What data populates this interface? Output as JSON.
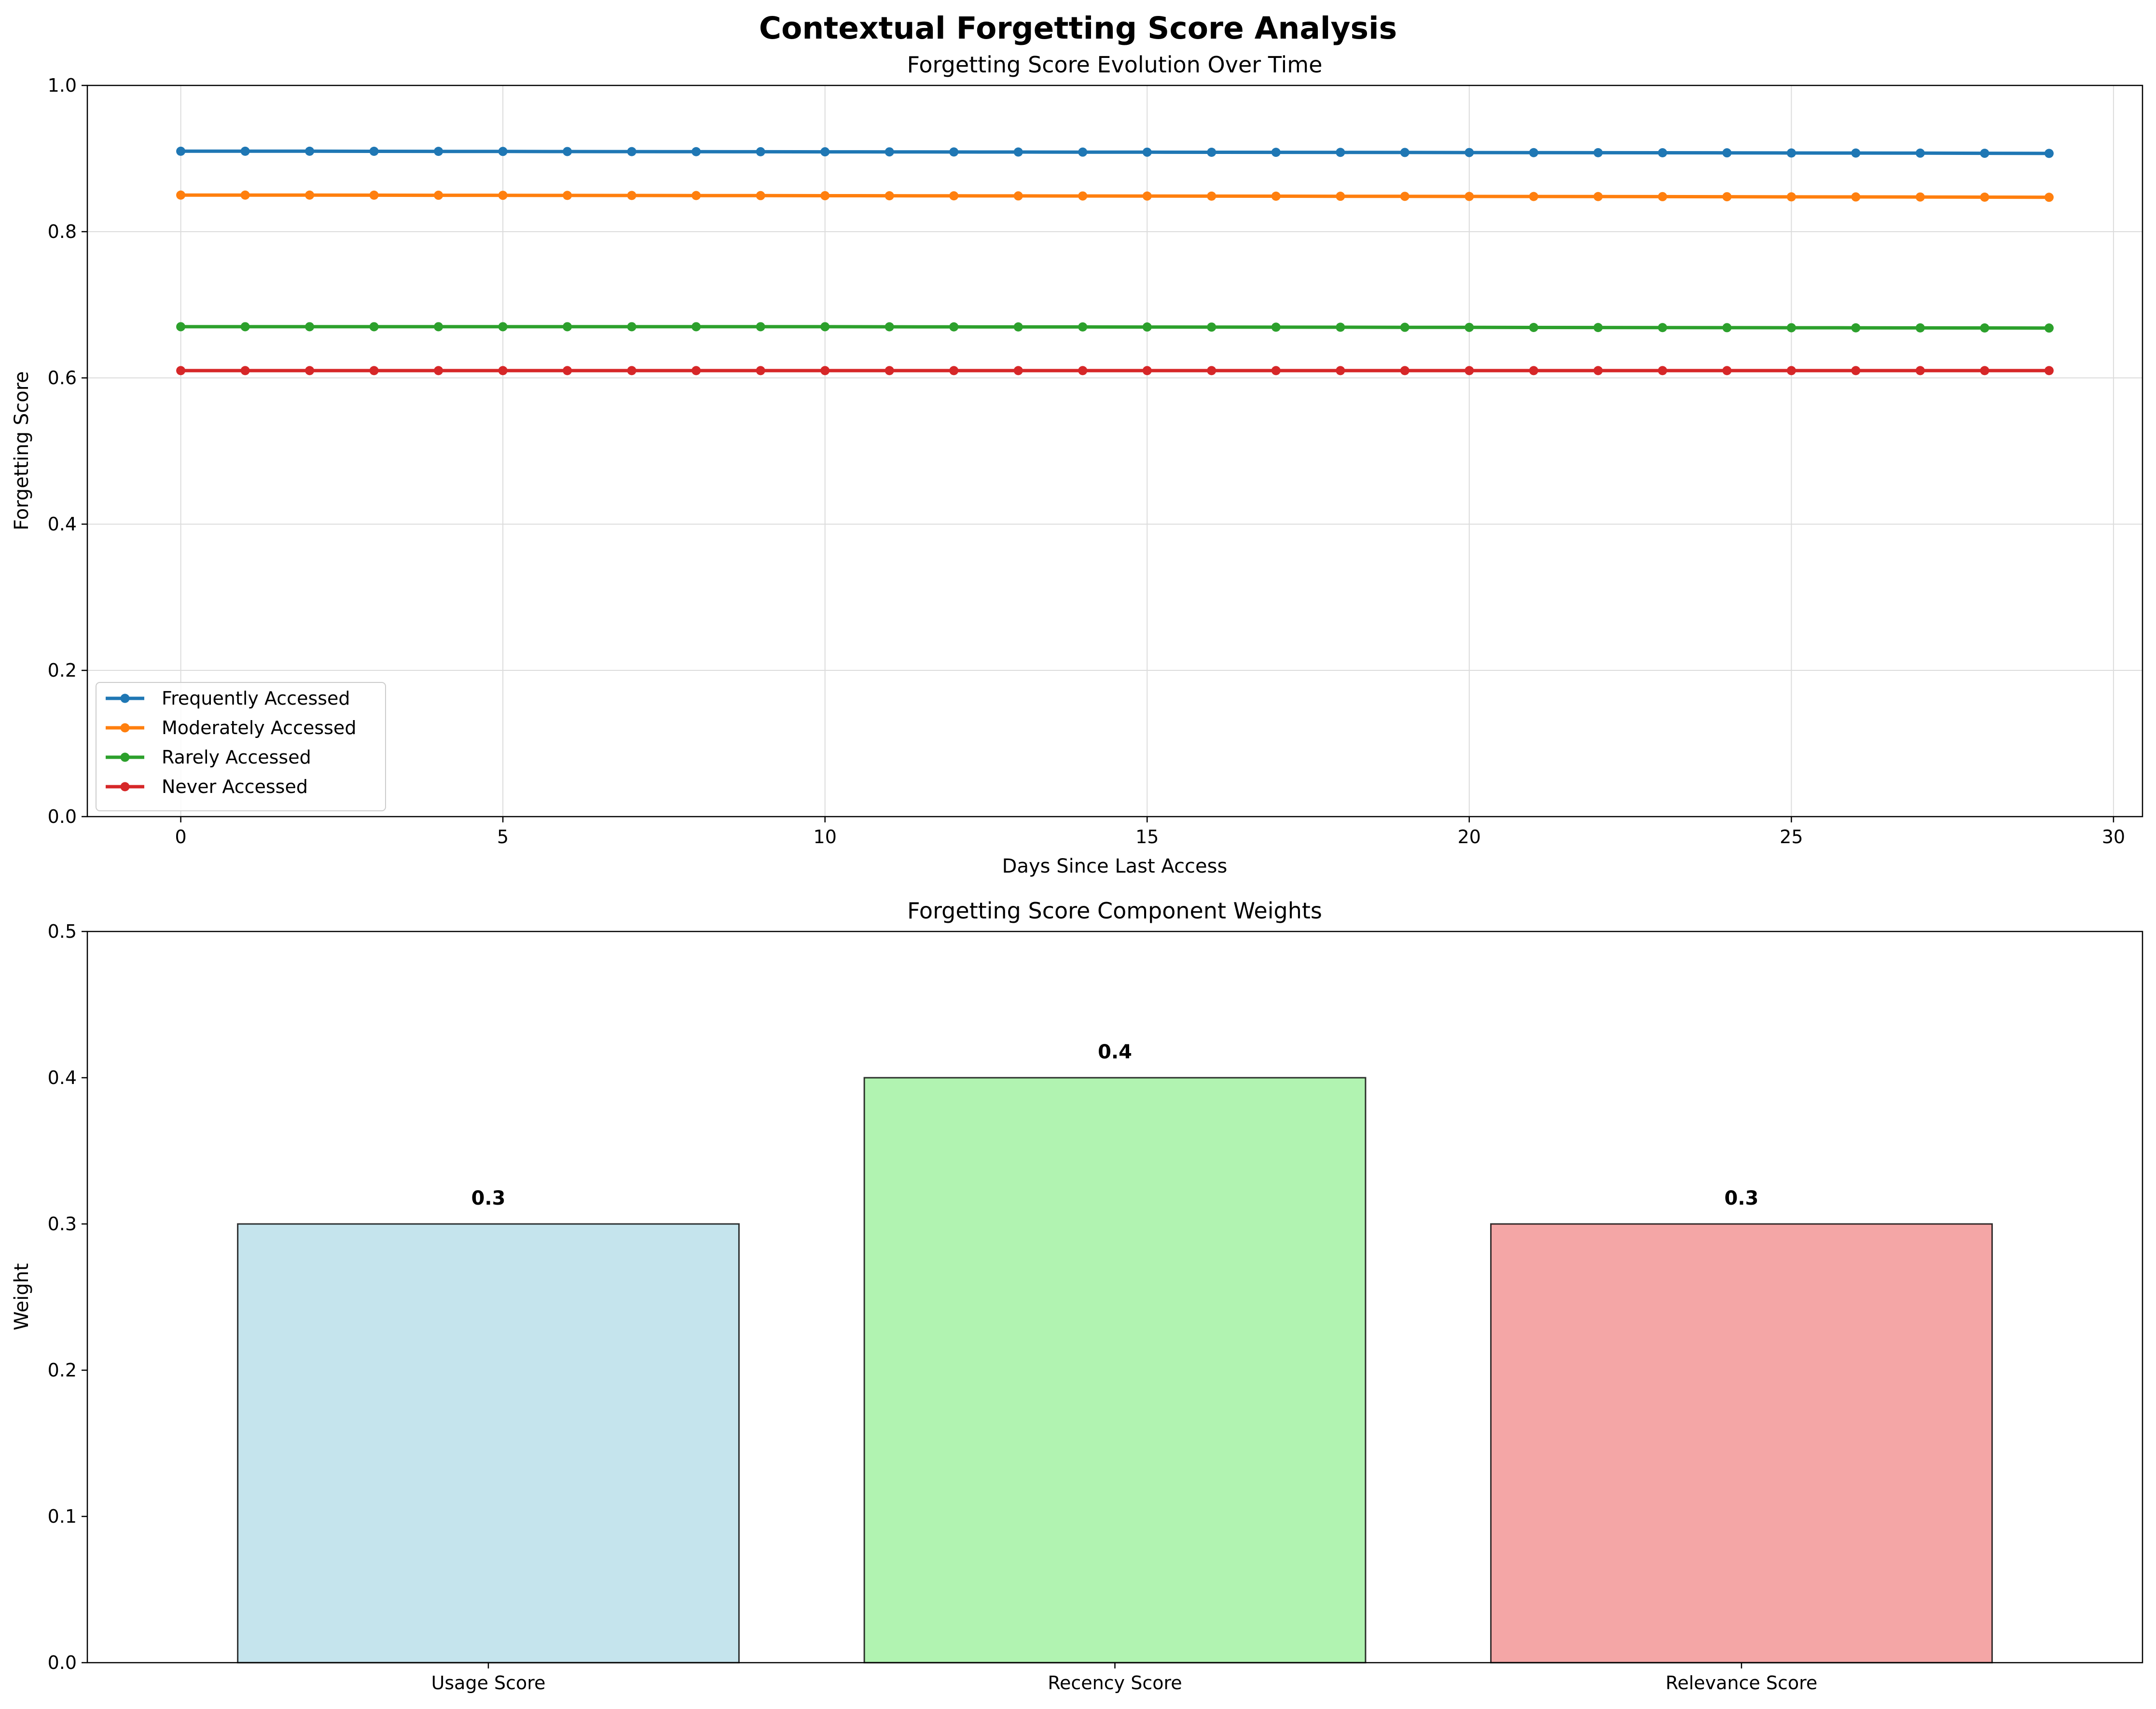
{
  "figure": {
    "title": "Contextual Forgetting Score Analysis"
  },
  "chart_data": [
    {
      "type": "line",
      "title": "Forgetting Score Evolution Over Time",
      "xlabel": "Days Since Last Access",
      "ylabel": "Forgetting Score",
      "xlim": [
        -1.45,
        30.45
      ],
      "ylim": [
        0,
        1.0
      ],
      "xticks": [
        0,
        5,
        10,
        15,
        20,
        25,
        30
      ],
      "yticks": [
        0.0,
        0.2,
        0.4,
        0.6,
        0.8,
        1.0
      ],
      "grid": true,
      "legend_position": "lower-left",
      "x": [
        0,
        1,
        2,
        3,
        4,
        5,
        6,
        7,
        8,
        9,
        10,
        11,
        12,
        13,
        14,
        15,
        16,
        17,
        18,
        19,
        20,
        21,
        22,
        23,
        24,
        25,
        26,
        27,
        28,
        29
      ],
      "series": [
        {
          "name": "Frequently Accessed",
          "color": "#1f77b4",
          "values": [
            0.91,
            0.91,
            0.91,
            0.9099,
            0.9098,
            0.9097,
            0.9096,
            0.9095,
            0.9094,
            0.9093,
            0.9092,
            0.9091,
            0.909,
            0.9089,
            0.9088,
            0.9087,
            0.9086,
            0.9085,
            0.9084,
            0.9083,
            0.9082,
            0.9081,
            0.908,
            0.9079,
            0.9078,
            0.9076,
            0.9075,
            0.9074,
            0.9072,
            0.907
          ]
        },
        {
          "name": "Moderately Accessed",
          "color": "#ff7f0e",
          "values": [
            0.85,
            0.85,
            0.85,
            0.8499,
            0.8498,
            0.8497,
            0.8496,
            0.8495,
            0.8494,
            0.8493,
            0.8492,
            0.8491,
            0.849,
            0.8489,
            0.8488,
            0.8487,
            0.8486,
            0.8485,
            0.8484,
            0.8483,
            0.8482,
            0.8481,
            0.848,
            0.8479,
            0.8478,
            0.8476,
            0.8475,
            0.8474,
            0.8472,
            0.847
          ]
        },
        {
          "name": "Rarely Accessed",
          "color": "#2ca02c",
          "values": [
            0.67,
            0.67,
            0.67,
            0.67,
            0.67,
            0.67,
            0.67,
            0.67,
            0.67,
            0.67,
            0.67,
            0.6699,
            0.6698,
            0.6697,
            0.6697,
            0.6696,
            0.6695,
            0.6694,
            0.6693,
            0.6692,
            0.6691,
            0.669,
            0.6689,
            0.6688,
            0.6687,
            0.6686,
            0.6685,
            0.6684,
            0.6683,
            0.6682
          ]
        },
        {
          "name": "Never Accessed",
          "color": "#d62728",
          "values": [
            0.61,
            0.61,
            0.61,
            0.61,
            0.61,
            0.61,
            0.61,
            0.61,
            0.61,
            0.61,
            0.61,
            0.61,
            0.61,
            0.61,
            0.61,
            0.61,
            0.61,
            0.61,
            0.61,
            0.61,
            0.61,
            0.61,
            0.61,
            0.61,
            0.61,
            0.61,
            0.61,
            0.61,
            0.61,
            0.61
          ]
        }
      ]
    },
    {
      "type": "bar",
      "title": "Forgetting Score Component Weights",
      "xlabel": "",
      "ylabel": "Weight",
      "ylim": [
        0,
        0.5
      ],
      "yticks": [
        0.0,
        0.1,
        0.2,
        0.3,
        0.4,
        0.5
      ],
      "grid": false,
      "categories": [
        "Usage Score",
        "Recency Score",
        "Relevance Score"
      ],
      "values": [
        0.3,
        0.4,
        0.3
      ],
      "data_labels": [
        "0.3",
        "0.4",
        "0.3"
      ],
      "colors": [
        "#add8e6",
        "#90ee90",
        "#f08080"
      ]
    }
  ]
}
